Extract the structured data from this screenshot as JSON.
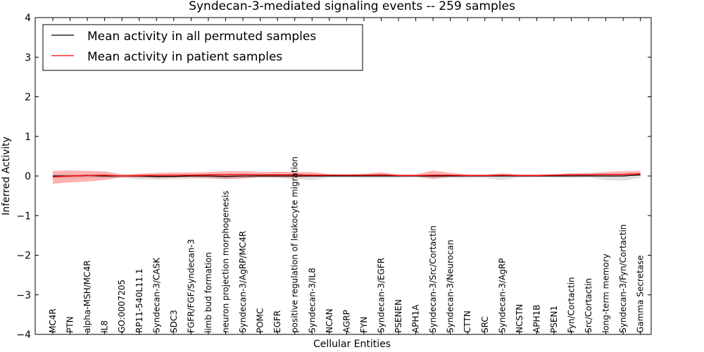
{
  "chart_data": {
    "type": "line",
    "title": "Syndecan-3-mediated signaling events -- 259 samples",
    "xlabel": "Cellular Entities",
    "ylabel": "Inferred Activity",
    "ylim": [
      -4,
      4
    ],
    "yticks": [
      4,
      3,
      2,
      1,
      0,
      -1,
      -2,
      -3,
      -4
    ],
    "ytick_labels": [
      "4",
      "3",
      "2",
      "1",
      "0",
      "−1",
      "−2",
      "−3",
      "−4"
    ],
    "legend_position": "top-left",
    "categories": [
      "MC4R",
      "PTN",
      "alpha-MSH/MC4R",
      "IL8",
      "GO:0007205",
      "RP11-540L11.1",
      "Syndecan-3/CASK",
      "SDC3",
      "FGFR/FGF/Syndecan-3",
      "limb bud formation",
      "neuron projection morphogenesis",
      "Syndecan-3/AgRP/MC4R",
      "POMC",
      "EGFR",
      "positive regulation of leukocyte migration",
      "Syndecan-3/IL8",
      "NCAN",
      "AGRP",
      "FYN",
      "Syndecan-3/EGFR",
      "PSENEN",
      "APH1A",
      "Syndecan-3/Src/Cortactin",
      "Syndecan-3/Neurocan",
      "CTTN",
      "SRC",
      "Syndecan-3/AgRP",
      "NCSTN",
      "APH1B",
      "PSEN1",
      "Fyn/Cortactin",
      "Src/Cortactin",
      "long-term memory",
      "Syndecan-3/Fyn/Cortactin",
      "Gamma Secretase"
    ],
    "series": [
      {
        "name": "Mean activity in all permuted samples",
        "color": "#000000",
        "values": [
          0.0,
          0.0,
          0.01,
          0.0,
          0.0,
          0.0,
          -0.01,
          -0.01,
          0.0,
          0.0,
          -0.01,
          0.0,
          0.0,
          0.0,
          0.0,
          0.0,
          0.0,
          0.0,
          0.0,
          0.0,
          0.0,
          0.0,
          0.0,
          0.0,
          0.0,
          0.0,
          0.0,
          0.0,
          0.0,
          0.0,
          0.0,
          0.0,
          0.0,
          0.0,
          0.03
        ],
        "band_low": [
          -0.05,
          -0.05,
          -0.04,
          -0.04,
          -0.05,
          -0.08,
          -0.09,
          -0.08,
          -0.07,
          -0.06,
          -0.08,
          -0.06,
          -0.04,
          -0.05,
          -0.08,
          -0.1,
          -0.04,
          -0.04,
          -0.05,
          -0.06,
          -0.05,
          -0.04,
          -0.08,
          -0.05,
          -0.06,
          -0.05,
          -0.1,
          -0.04,
          -0.03,
          -0.04,
          -0.05,
          -0.04,
          -0.1,
          -0.12,
          -0.05
        ],
        "band_high": [
          0.04,
          0.04,
          0.05,
          0.04,
          0.03,
          0.03,
          0.03,
          0.04,
          0.04,
          0.05,
          0.05,
          0.05,
          0.04,
          0.05,
          0.06,
          0.05,
          0.04,
          0.03,
          0.04,
          0.04,
          0.03,
          0.03,
          0.04,
          0.04,
          0.03,
          0.03,
          0.04,
          0.03,
          0.03,
          0.03,
          0.03,
          0.04,
          0.05,
          0.05,
          0.07
        ]
      },
      {
        "name": "Mean activity in patient samples",
        "color": "#ff0000",
        "values": [
          -0.02,
          0.0,
          0.01,
          0.02,
          0.0,
          0.01,
          0.02,
          0.02,
          0.02,
          0.03,
          0.03,
          0.04,
          0.03,
          0.03,
          0.03,
          0.02,
          0.02,
          0.02,
          0.02,
          0.03,
          0.01,
          0.01,
          0.02,
          0.02,
          0.01,
          0.01,
          0.02,
          0.01,
          0.01,
          0.02,
          0.03,
          0.03,
          0.04,
          0.04,
          0.06
        ],
        "band_low": [
          -0.2,
          -0.16,
          -0.14,
          -0.1,
          -0.03,
          -0.04,
          -0.05,
          -0.04,
          -0.03,
          -0.05,
          -0.07,
          -0.06,
          -0.03,
          -0.03,
          -0.04,
          -0.02,
          -0.01,
          -0.01,
          -0.01,
          -0.01,
          -0.01,
          -0.01,
          -0.06,
          -0.02,
          -0.01,
          -0.01,
          -0.01,
          -0.01,
          -0.01,
          -0.01,
          -0.01,
          0.0,
          0.0,
          0.0,
          0.0
        ],
        "band_high": [
          0.13,
          0.14,
          0.13,
          0.12,
          0.04,
          0.06,
          0.08,
          0.09,
          0.09,
          0.1,
          0.12,
          0.12,
          0.1,
          0.11,
          0.1,
          0.1,
          0.05,
          0.04,
          0.06,
          0.09,
          0.04,
          0.04,
          0.14,
          0.08,
          0.04,
          0.04,
          0.07,
          0.04,
          0.04,
          0.05,
          0.07,
          0.08,
          0.1,
          0.12,
          0.13
        ]
      }
    ]
  }
}
